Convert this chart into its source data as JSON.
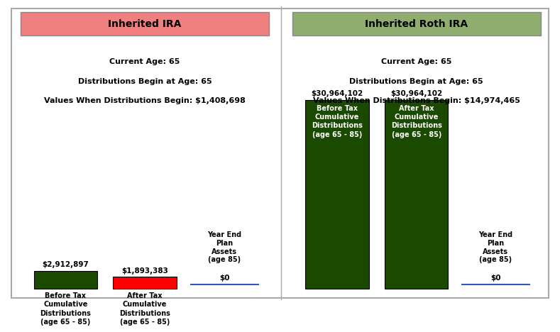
{
  "left_title": "Inherited IRA",
  "left_title_bg": "#F08080",
  "left_header_lines": [
    "Current Age: 65",
    "Distributions Begin at Age: 65",
    "Values When Distributions Begin: $1,408,698"
  ],
  "left_bars": [
    {
      "label": "Before Tax\nCumulative\nDistributions\n(age 65 - 85)",
      "value": 2912897,
      "value_label": "$2,912,897",
      "color": "#1a4a00",
      "text_color": "#ffffff",
      "bar_text": null
    },
    {
      "label": "After Tax\nCumulative\nDistributions\n(age 65 - 85)",
      "value": 1893383,
      "value_label": "$1,893,383",
      "color": "#ff0000",
      "text_color": "#ffffff",
      "bar_text": null
    },
    {
      "label": "Year End\nPlan\nAssets\n(age 85)",
      "value": 0,
      "value_label": "$0",
      "color": "#4444aa",
      "text_color": "#000000",
      "bar_text": null,
      "line_only": true
    }
  ],
  "right_title": "Inherited Roth IRA",
  "right_title_bg": "#8fad6e",
  "right_header_lines": [
    "Current Age: 65",
    "Distributions Begin at Age: 65",
    "Values When Distributions Begin: $14,974,465"
  ],
  "right_bars": [
    {
      "label": "Before Tax\nCumulative\nDistributions\n(age 65 - 85)",
      "value": 30964102,
      "value_label": "$30,964,102",
      "color": "#1a4a00",
      "text_color": "#ffffff",
      "bar_text": "Before Tax\nCumulative\nDistributions\n(age 65 - 85)"
    },
    {
      "label": "After Tax\nCumulative\nDistributions\n(age 65 - 85)",
      "value": 30964102,
      "value_label": "$30,964,102",
      "color": "#1a4a00",
      "text_color": "#ffffff",
      "bar_text": "After Tax\nCumulative\nDistributions\n(age 65 - 85)"
    },
    {
      "label": "Year End\nPlan\nAssets\n(age 85)",
      "value": 0,
      "value_label": "$0",
      "color": "#4444aa",
      "text_color": "#000000",
      "bar_text": null,
      "line_only": true
    }
  ],
  "max_value": 30964102,
  "background_color": "#ffffff",
  "font_size_title": 9,
  "font_size_header": 8,
  "font_size_bar_label": 7,
  "font_size_value": 7.5
}
